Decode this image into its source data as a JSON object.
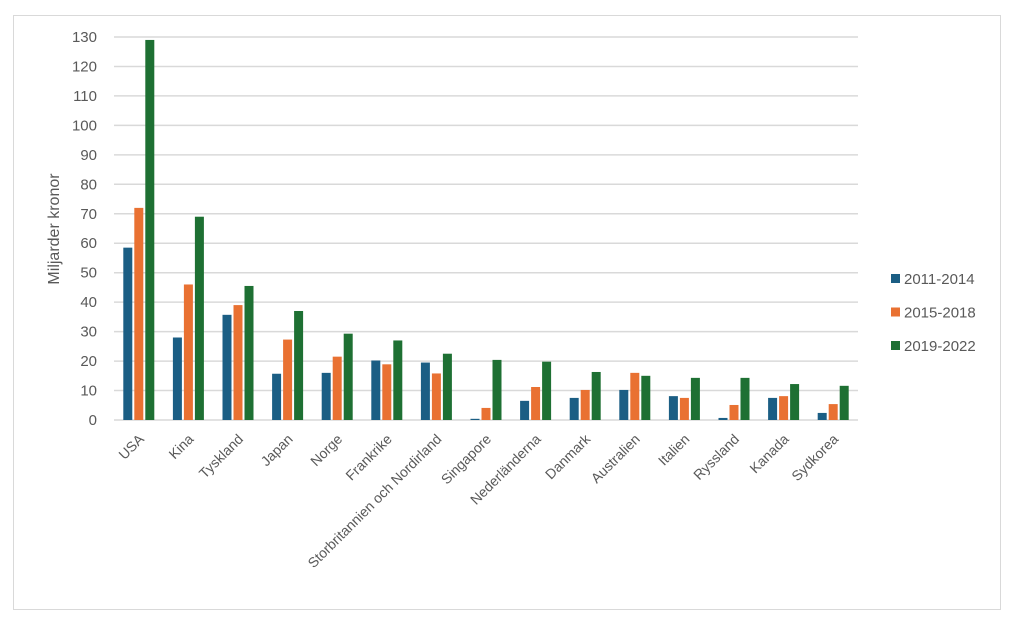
{
  "chart_data": {
    "type": "bar",
    "title": "",
    "xlabel": "",
    "ylabel": "Miljarder kronor",
    "ylim": [
      0,
      130
    ],
    "yticks": [
      0,
      10,
      20,
      30,
      40,
      50,
      60,
      70,
      80,
      90,
      100,
      110,
      120,
      130
    ],
    "grid": true,
    "legend_position": "right",
    "categories": [
      "USA",
      "Kina",
      "Tyskland",
      "Japan",
      "Norge",
      "Frankrike",
      "Storbritannien och Nordirland",
      "Singapore",
      "Nederländerna",
      "Danmark",
      "Australien",
      "Italien",
      "Ryssland",
      "Kanada",
      "Sydkorea"
    ],
    "series": [
      {
        "name": "2011-2014",
        "color": "#1b5e84",
        "values": [
          58.5,
          28,
          35.7,
          15.7,
          16,
          20.2,
          19.5,
          0.4,
          6.5,
          7.5,
          10.2,
          8.1,
          0.7,
          7.5,
          2.4
        ]
      },
      {
        "name": "2015-2018",
        "color": "#e97132",
        "values": [
          72,
          46,
          39,
          27.3,
          21.5,
          18.9,
          15.8,
          4.1,
          11.2,
          10.2,
          16,
          7.5,
          5.1,
          8.1,
          5.4
        ]
      },
      {
        "name": "2019-2022",
        "color": "#1e7033",
        "values": [
          129,
          69,
          45.5,
          37,
          29.3,
          27,
          22.5,
          20.4,
          19.8,
          16.3,
          15,
          14.3,
          14.3,
          12.2,
          11.6
        ]
      }
    ]
  }
}
